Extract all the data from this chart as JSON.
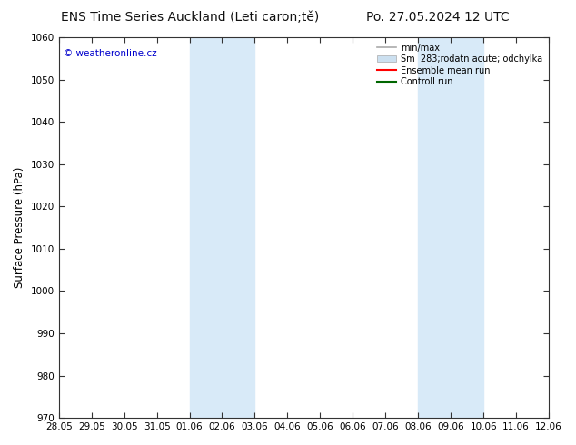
{
  "title_left": "ENS Time Series Auckland (Leti caron;tě)",
  "title_right": "Po. 27.05.2024 12 UTC",
  "ylabel": "Surface Pressure (hPa)",
  "ylim": [
    970,
    1060
  ],
  "yticks": [
    970,
    980,
    990,
    1000,
    1010,
    1020,
    1030,
    1040,
    1050,
    1060
  ],
  "xtick_labels": [
    "28.05",
    "29.05",
    "30.05",
    "31.05",
    "01.06",
    "02.06",
    "03.06",
    "04.06",
    "05.06",
    "06.06",
    "07.06",
    "08.06",
    "09.06",
    "10.06",
    "11.06",
    "12.06"
  ],
  "watermark": "© weatheronline.cz",
  "watermark_color": "#0000cc",
  "background_color": "#ffffff",
  "plot_bg_color": "#ffffff",
  "shaded_regions": [
    {
      "xstart": 4,
      "xend": 6,
      "color": "#d8eaf8"
    },
    {
      "xstart": 11,
      "xend": 13,
      "color": "#d8eaf8"
    }
  ],
  "legend_label1": "min/max",
  "legend_label2": "Sm  283;rodatn acute; odchylka",
  "legend_label3": "Ensemble mean run",
  "legend_label4": "Controll run",
  "legend_color1": "#aaaaaa",
  "legend_color2": "#cce0f0",
  "legend_color3": "#ff0000",
  "legend_color4": "#006600",
  "title_fontsize": 10,
  "tick_fontsize": 7.5,
  "label_fontsize": 8.5
}
